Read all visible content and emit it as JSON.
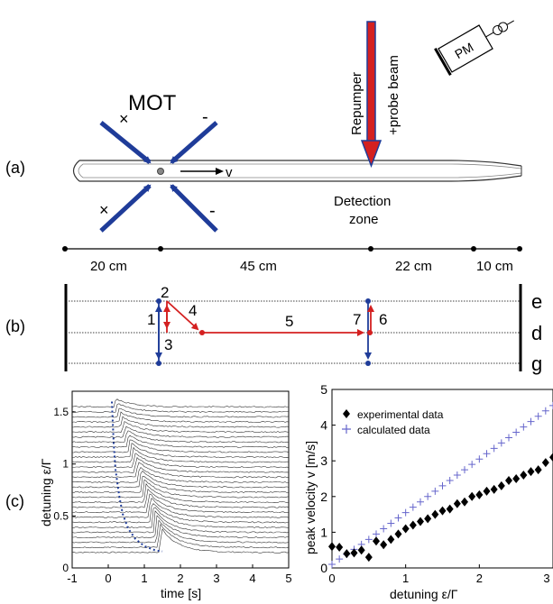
{
  "panel_a": {
    "label": "(a)",
    "mot_label": "MOT",
    "velocity_label": "v",
    "beam_label_1": "Repumper",
    "beam_label_2": "+probe beam",
    "detector_label": "PM",
    "detection_label_1": "Detection",
    "detection_label_2": "zone",
    "polarizations": [
      "×",
      "-",
      "×",
      "-"
    ],
    "distances": [
      "20 cm",
      "45 cm",
      "22 cm",
      "10 cm"
    ],
    "colors": {
      "arrow": "#1f3c99",
      "beam": "#d42020",
      "beam_edge": "#1f3c99"
    }
  },
  "panel_b": {
    "label": "(b)",
    "levels": [
      "e",
      "d",
      "g"
    ],
    "steps": [
      "1",
      "2",
      "3",
      "4",
      "5",
      "6",
      "7"
    ],
    "colors": {
      "blue": "#1f3c99",
      "red": "#d42020"
    }
  },
  "panel_c": {
    "label": "(c)"
  },
  "chart_data": [
    {
      "type": "line",
      "xlabel": "time [s]",
      "ylabel": "detuning ε/Γ",
      "xlim": [
        -1,
        5
      ],
      "ylim": [
        0,
        1.7
      ],
      "xticks": [
        "-1",
        "0",
        "1",
        "2",
        "3",
        "4",
        "5"
      ],
      "yticks": [
        "0",
        "0.5",
        "1",
        "1.5"
      ],
      "series_count": 30,
      "offset_min": 0.15,
      "offset_max": 1.55,
      "dotted_curve": {
        "x": [
          0.1,
          0.15,
          0.2,
          0.3,
          0.4,
          0.55,
          0.75,
          1.0,
          1.3,
          1.5
        ],
        "y": [
          1.6,
          1.2,
          0.95,
          0.7,
          0.52,
          0.38,
          0.28,
          0.21,
          0.17,
          0.16
        ]
      },
      "colors": {
        "trace": "#333333",
        "dotted": "#1f3c99"
      }
    },
    {
      "type": "scatter",
      "xlabel": "detuning ε/Γ",
      "ylabel": "peak velocity v [m/s]",
      "xlim": [
        0,
        3
      ],
      "ylim": [
        0,
        5
      ],
      "xticks": [
        "0",
        "1",
        "2",
        "3"
      ],
      "yticks": [
        "0",
        "1",
        "2",
        "3",
        "4",
        "5"
      ],
      "legend_position": "top-left",
      "series": [
        {
          "name": "experimental data",
          "marker": "diamond",
          "color": "#000000",
          "x": [
            0.0,
            0.1,
            0.2,
            0.3,
            0.4,
            0.5,
            0.6,
            0.7,
            0.8,
            0.9,
            1.0,
            1.1,
            1.2,
            1.3,
            1.4,
            1.5,
            1.6,
            1.7,
            1.8,
            1.9,
            2.0,
            2.1,
            2.2,
            2.3,
            2.4,
            2.5,
            2.6,
            2.7,
            2.8,
            2.9,
            3.0
          ],
          "y": [
            0.6,
            0.58,
            0.4,
            0.42,
            0.5,
            0.3,
            0.75,
            0.65,
            0.8,
            0.95,
            1.1,
            1.2,
            1.3,
            1.38,
            1.5,
            1.6,
            1.65,
            1.8,
            1.85,
            2.0,
            2.05,
            2.15,
            2.2,
            2.3,
            2.45,
            2.5,
            2.6,
            2.7,
            2.75,
            2.95,
            3.1
          ]
        },
        {
          "name": "calculated data",
          "marker": "plus",
          "color": "#6666cc",
          "x": [
            0.0,
            0.1,
            0.2,
            0.3,
            0.4,
            0.5,
            0.6,
            0.7,
            0.8,
            0.9,
            1.0,
            1.1,
            1.2,
            1.3,
            1.4,
            1.5,
            1.6,
            1.7,
            1.8,
            1.9,
            2.0,
            2.1,
            2.2,
            2.3,
            2.4,
            2.5,
            2.6,
            2.7,
            2.8,
            2.9,
            3.0
          ],
          "y": [
            0.1,
            0.25,
            0.38,
            0.52,
            0.66,
            0.8,
            0.95,
            1.1,
            1.25,
            1.4,
            1.55,
            1.7,
            1.85,
            2.0,
            2.15,
            2.3,
            2.45,
            2.6,
            2.75,
            2.9,
            3.05,
            3.2,
            3.35,
            3.5,
            3.65,
            3.8,
            3.95,
            4.1,
            4.25,
            4.4,
            4.55
          ]
        }
      ]
    }
  ]
}
